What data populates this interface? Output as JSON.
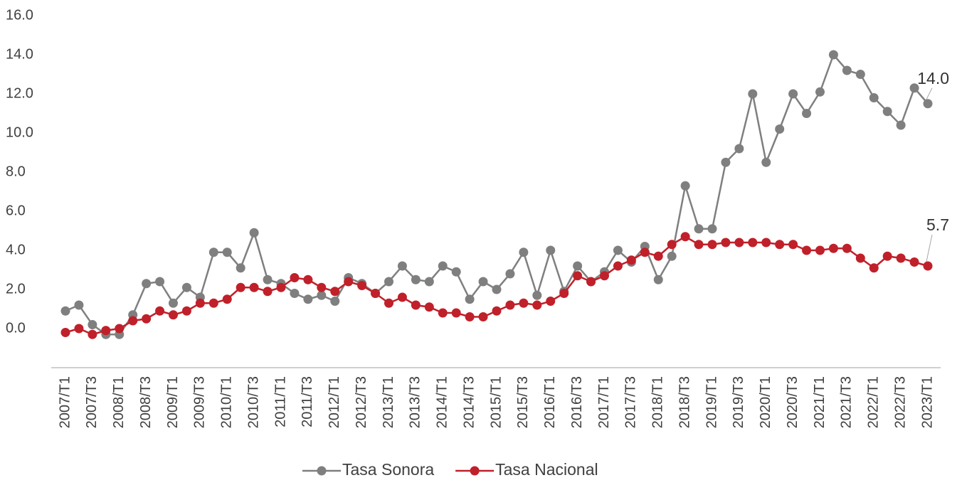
{
  "chart_data": {
    "type": "line",
    "categories": [
      "2007/T1",
      null,
      "2007/T3",
      null,
      "2008/T1",
      null,
      "2008/T3",
      null,
      "2009/T1",
      null,
      "2009/T3",
      null,
      "2010/T1",
      null,
      "2010/T3",
      null,
      "2011/T1",
      null,
      "2011/T3",
      null,
      "2012/T1",
      null,
      "2012/T3",
      null,
      "2013/T1",
      null,
      "2013/T3",
      null,
      "2014/T1",
      null,
      "2014/T3",
      null,
      "2015/T1",
      null,
      "2015/T3",
      null,
      "2016/T1",
      null,
      "2016/T3",
      null,
      "2017/T1",
      null,
      "2017/T3",
      null,
      "2018/T1",
      null,
      "2018/T3",
      null,
      "2019/T1",
      null,
      "2019/T3",
      null,
      "2020/T1",
      null,
      "2020/T3",
      null,
      "2021/T1",
      null,
      "2021/T3",
      null,
      "2022/T1",
      null,
      "2022/T3",
      null,
      "2023/T1"
    ],
    "series": [
      {
        "name": "Tasa Sonora",
        "color": "#7f7f7f",
        "values": [
          0.9,
          1.2,
          0.2,
          -0.3,
          -0.3,
          0.7,
          2.3,
          2.4,
          1.3,
          2.1,
          1.6,
          3.9,
          3.9,
          3.1,
          4.9,
          2.5,
          2.3,
          1.8,
          1.5,
          1.7,
          1.4,
          2.6,
          2.3,
          1.8,
          2.4,
          3.2,
          2.5,
          2.4,
          3.2,
          2.9,
          1.5,
          2.4,
          2.0,
          2.8,
          3.9,
          1.7,
          4.0,
          1.9,
          3.2,
          2.4,
          2.9,
          4.0,
          3.4,
          4.2,
          2.5,
          3.7,
          7.3,
          5.1,
          5.1,
          8.5,
          9.2,
          12.0,
          8.5,
          10.2,
          12.0,
          11.0,
          12.1,
          14.0,
          13.2,
          13.0,
          11.8,
          11.1,
          10.4,
          12.3,
          11.5
        ]
      },
      {
        "name": "Tasa Nacional",
        "color": "#c0202a",
        "values": [
          -0.2,
          0.0,
          -0.3,
          -0.1,
          0.0,
          0.4,
          0.5,
          0.9,
          0.7,
          0.9,
          1.3,
          1.3,
          1.5,
          2.1,
          2.1,
          1.9,
          2.1,
          2.6,
          2.5,
          2.1,
          1.9,
          2.4,
          2.2,
          1.8,
          1.3,
          1.6,
          1.2,
          1.1,
          0.8,
          0.8,
          0.6,
          0.6,
          0.9,
          1.2,
          1.3,
          1.2,
          1.4,
          1.8,
          2.7,
          2.4,
          2.7,
          3.2,
          3.5,
          3.9,
          3.7,
          4.3,
          4.7,
          4.3,
          4.3,
          4.4,
          4.4,
          4.4,
          4.4,
          4.3,
          4.3,
          4.0,
          4.0,
          4.1,
          4.1,
          3.6,
          3.1,
          3.7,
          3.6,
          3.4,
          3.2
        ]
      }
    ],
    "annotations": [
      "14.0",
      "5.7"
    ],
    "ylim": [
      -2,
      16
    ],
    "yticks": [
      {
        "value": 0,
        "label": "0.0"
      },
      {
        "value": 2,
        "label": "2.0"
      },
      {
        "value": 4,
        "label": "4.0"
      },
      {
        "value": 6,
        "label": "6.0"
      },
      {
        "value": 8,
        "label": "8.0"
      },
      {
        "value": 10,
        "label": "10.0"
      },
      {
        "value": 12,
        "label": "12.0"
      },
      {
        "value": 14,
        "label": "14.0"
      },
      {
        "value": 16,
        "label": "16.0"
      }
    ],
    "grid": false,
    "legend": "bottom"
  }
}
